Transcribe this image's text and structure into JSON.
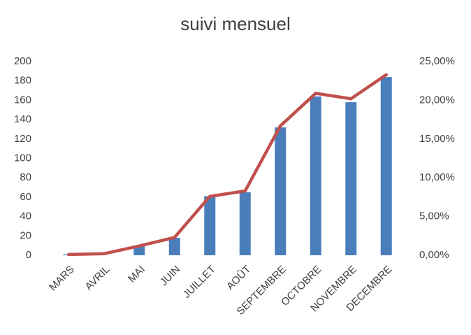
{
  "chart_data": {
    "type": "bar-line",
    "title": "suivi mensuel",
    "categories": [
      "MARS",
      "AVRIL",
      "MAI",
      "JUIN",
      "JUILLET",
      "AOÛT",
      "SEPTEMBRE",
      "OCTOBRE",
      "NOVEMBRE",
      "DECEMBRE"
    ],
    "series": [
      {
        "type": "bar",
        "color": "#4a7ebb",
        "values": [
          1,
          0,
          10,
          18,
          61,
          65,
          132,
          164,
          158,
          184
        ]
      },
      {
        "type": "line",
        "axis": "y2",
        "color": "#c0504d",
        "values": [
          0.1,
          0.2,
          1.2,
          2.3,
          7.6,
          8.3,
          16.7,
          20.9,
          20.2,
          23.3
        ]
      }
    ],
    "ylim": [
      0,
      200
    ],
    "yticks": [
      0,
      20,
      40,
      60,
      80,
      100,
      120,
      140,
      160,
      180,
      200
    ],
    "y2lim": [
      0,
      25
    ],
    "y2ticks": [
      {
        "value": 0,
        "label": "0,00%"
      },
      {
        "value": 5,
        "label": "5,00%"
      },
      {
        "value": 10,
        "label": "10,00%"
      },
      {
        "value": 15,
        "label": "15,00%"
      },
      {
        "value": 20,
        "label": "20,00%"
      },
      {
        "value": 25,
        "label": "25,00%"
      }
    ],
    "grid": false
  }
}
